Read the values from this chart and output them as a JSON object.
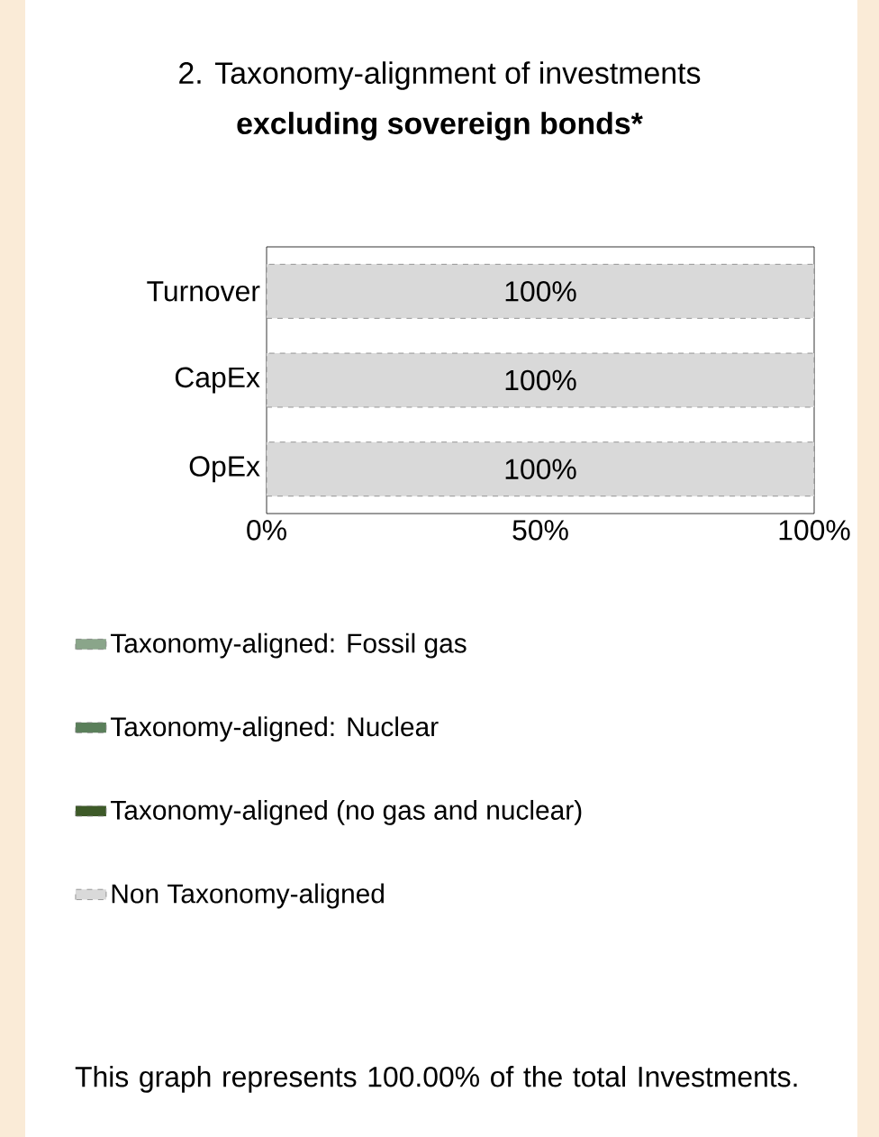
{
  "chart_data": {
    "type": "bar",
    "orientation": "horizontal",
    "stacked": true,
    "title": "2. Taxonomy-alignment of investments",
    "subtitle": "excluding sovereign bonds*",
    "categories": [
      "Turnover",
      "CapEx",
      "OpEx"
    ],
    "series": [
      {
        "name": "Taxonomy-aligned: Fossil gas",
        "color": "#8aa58a",
        "values": [
          0,
          0,
          0
        ]
      },
      {
        "name": "Taxonomy-aligned: Nuclear",
        "color": "#5a7f5a",
        "values": [
          0,
          0,
          0
        ]
      },
      {
        "name": "Taxonomy-aligned (no gas and nuclear)",
        "color": "#3d5a28",
        "values": [
          0,
          0,
          0
        ]
      },
      {
        "name": "Non Taxonomy-aligned",
        "color": "#d9d9d9",
        "values": [
          100,
          100,
          100
        ],
        "value_labels": [
          "100%",
          "100%",
          "100%"
        ]
      }
    ],
    "xlim": [
      0,
      100
    ],
    "xticks": [
      {
        "value": 0,
        "label": "0%"
      },
      {
        "value": 50,
        "label": "50%"
      },
      {
        "value": 100,
        "label": "100%"
      }
    ],
    "legend": "bottom",
    "annotations": [
      "This graph represents 100.00% of the total Investments."
    ]
  }
}
